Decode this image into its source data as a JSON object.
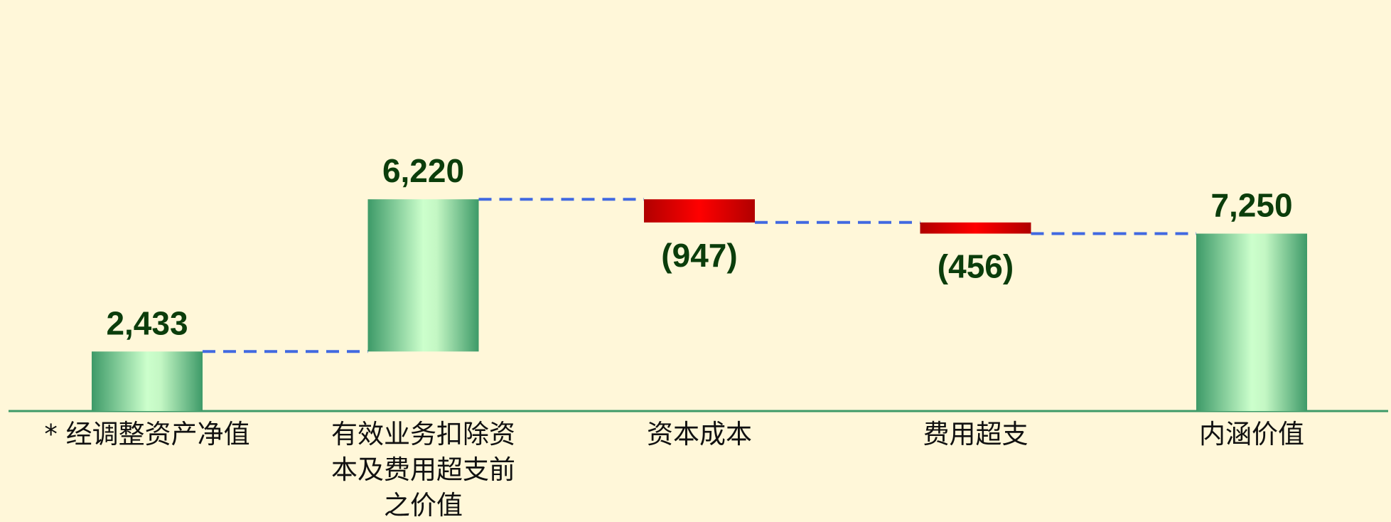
{
  "chart_data": {
    "type": "waterfall",
    "categories": [
      "* 经调整资产净值",
      "有效业务扣除资本及费用超支前之价值",
      "资本成本",
      "费用超支",
      "内涵价值"
    ],
    "values": [
      2433,
      6220,
      -947,
      -456,
      7250
    ],
    "value_labels": [
      "2,433",
      "6,220",
      "(947)",
      "(456)",
      "7,250"
    ],
    "positive_color": "#3d9a68",
    "negative_color": "#c00000",
    "connector_color": "#4169e1"
  }
}
